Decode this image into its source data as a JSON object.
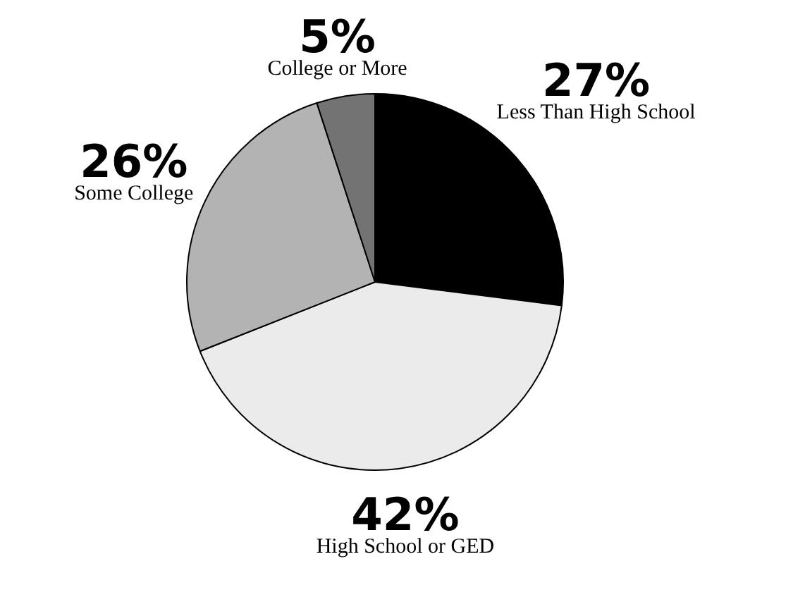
{
  "chart_data": {
    "type": "pie",
    "categories": [
      "Less Than High School",
      "High School or GED",
      "Some College",
      "College or More"
    ],
    "values": [
      27,
      42,
      26,
      5
    ],
    "value_labels": [
      "27%",
      "42%",
      "26%",
      "5%"
    ],
    "colors": [
      "#000000",
      "#ebebeb",
      "#b3b3b3",
      "#737373"
    ],
    "legend": false
  }
}
